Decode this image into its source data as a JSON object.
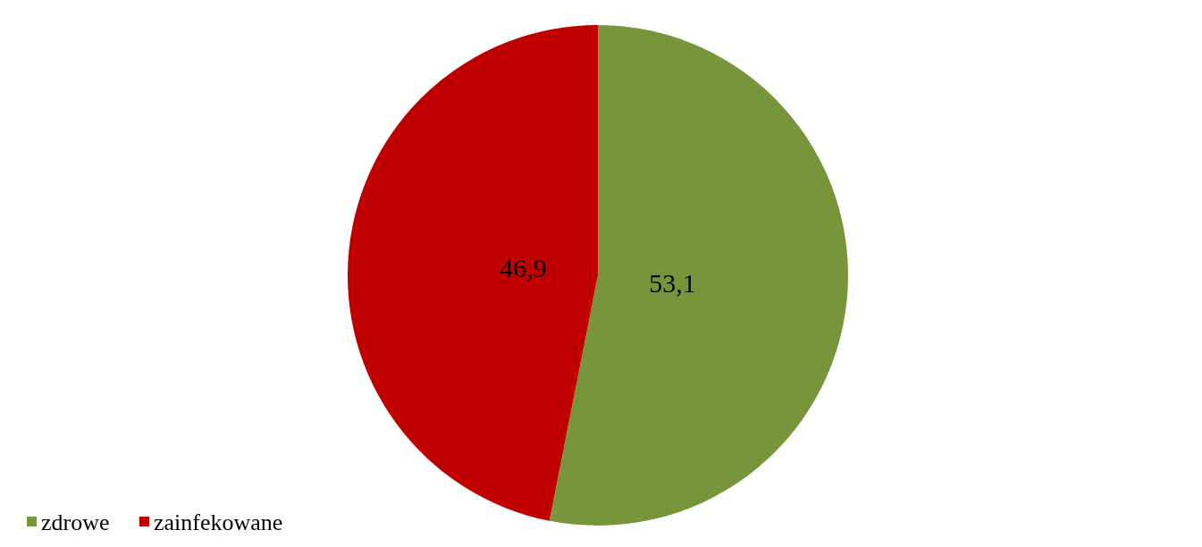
{
  "chart_data": {
    "type": "pie",
    "categories": [
      "zdrowe",
      "zainfekowane"
    ],
    "values": [
      53.1,
      46.9
    ],
    "colors": [
      "#77963c",
      "#c00000"
    ],
    "value_labels": [
      "53,1",
      "46,9"
    ],
    "legend": "bottom left"
  }
}
